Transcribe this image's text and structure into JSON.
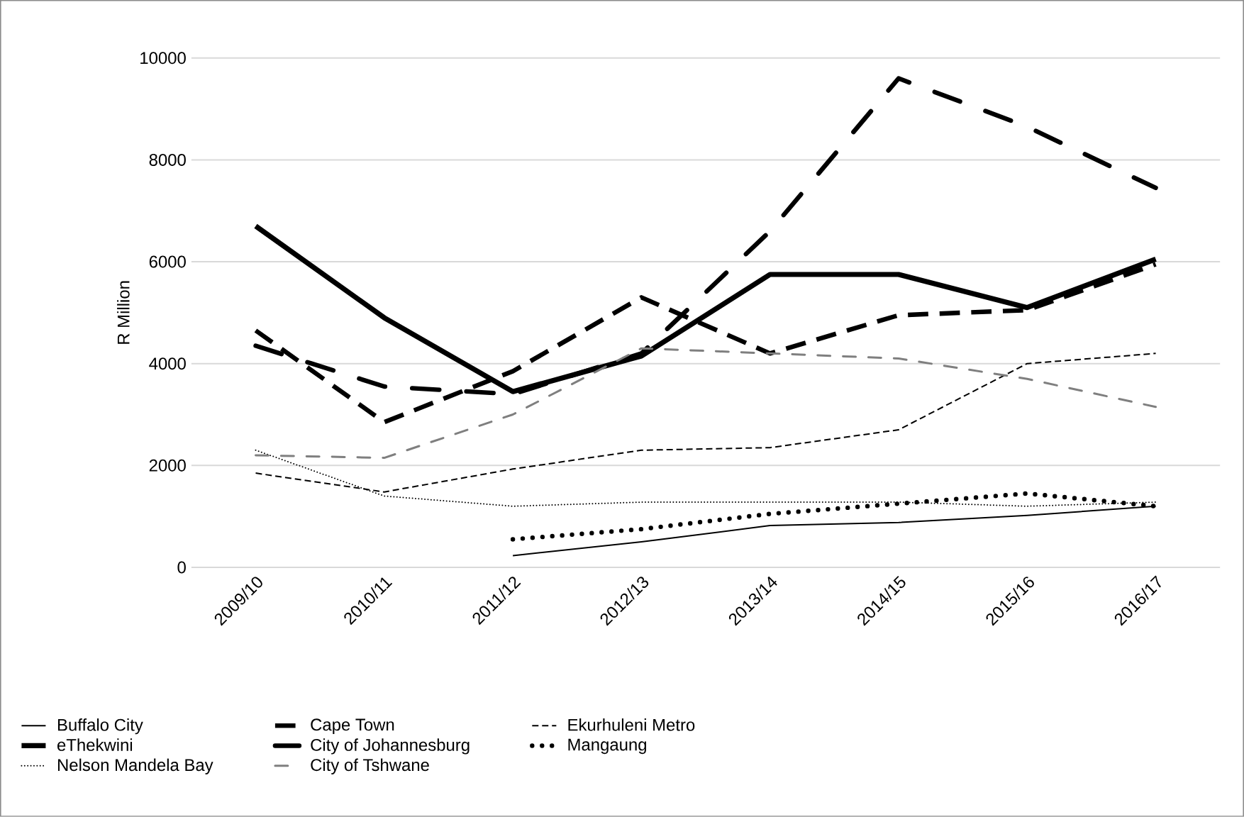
{
  "chart_data": {
    "type": "line",
    "ylabel": "R Million",
    "categories": [
      "2009/10",
      "2010/11",
      "2011/12",
      "2012/13",
      "2013/14",
      "2014/15",
      "2015/16",
      "2016/17"
    ],
    "ylim": [
      0,
      10000
    ],
    "yticks": [
      0,
      2000,
      4000,
      6000,
      8000,
      10000
    ],
    "grid": "y",
    "legend": "bottom",
    "series": [
      {
        "name": "Buffalo City",
        "color": "#000000",
        "line_style": "solid",
        "values": [
          null,
          null,
          230,
          500,
          820,
          880,
          1020,
          1200
        ]
      },
      {
        "name": "Cape Town",
        "color": "#000000",
        "line_style": "dashed",
        "values": [
          4650,
          2850,
          3850,
          5300,
          4200,
          4950,
          5050,
          5950
        ]
      },
      {
        "name": "Ekurhuleni Metro",
        "color": "#000000",
        "line_style": "dashed",
        "values": [
          1850,
          1480,
          1930,
          2300,
          2350,
          2700,
          4000,
          4200
        ]
      },
      {
        "name": "eThekwini",
        "color": "#000000",
        "line_style": "solid",
        "values": [
          6700,
          4900,
          3450,
          4150,
          5750,
          5750,
          5100,
          6050
        ]
      },
      {
        "name": "City of Johannesburg",
        "color": "#000000",
        "line_style": "dashdot",
        "values": [
          4350,
          3550,
          3400,
          4200,
          6600,
          9600,
          8650,
          7450
        ]
      },
      {
        "name": "Mangaung",
        "color": "#000000",
        "line_style": "dotted",
        "values": [
          null,
          null,
          550,
          750,
          1050,
          1250,
          1450,
          1200
        ]
      },
      {
        "name": "Nelson Mandela Bay",
        "color": "#000000",
        "line_style": "dotted",
        "values": [
          2300,
          1400,
          1200,
          1280,
          1280,
          1280,
          1200,
          1280
        ]
      },
      {
        "name": "City of Tshwane",
        "color": "#7f7f7f",
        "line_style": "dashdot",
        "values": [
          2200,
          2150,
          3000,
          4300,
          4200,
          4100,
          3700,
          3150
        ]
      }
    ]
  }
}
